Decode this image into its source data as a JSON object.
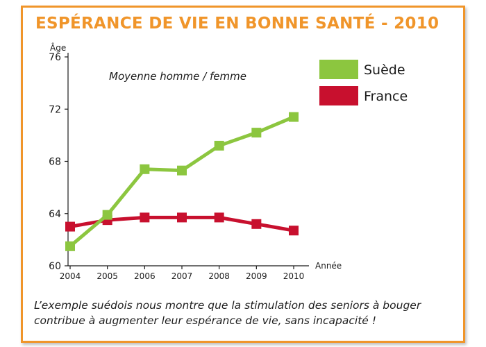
{
  "title": "ESPÉRANCE DE VIE EN BONNE SANTÉ - 2010",
  "caption": {
    "line1": "L’exemple suédois nous montre que la stimulation des seniors à bouger",
    "line2": "contribue à augmenter leur espérance de vie, sans incapacité !"
  },
  "chart_data": {
    "type": "line",
    "title": "ESPÉRANCE DE VIE EN BONNE SANTÉ - 2010",
    "subtitle": "Moyenne homme / femme",
    "xlabel": "Année",
    "ylabel": "Âge",
    "x": [
      "2004",
      "2005",
      "2006",
      "2007",
      "2008",
      "2009",
      "2010"
    ],
    "ylim": [
      60,
      76
    ],
    "yticks": [
      60,
      64,
      68,
      72,
      76
    ],
    "grid": false,
    "legend_position": "top-right",
    "series": [
      {
        "name": "Suède",
        "color": "#8cc63f",
        "values": [
          61.5,
          63.9,
          67.4,
          67.3,
          69.2,
          70.2,
          71.4
        ]
      },
      {
        "name": "France",
        "color": "#c8102e",
        "values": [
          63.0,
          63.5,
          63.7,
          63.7,
          63.7,
          63.2,
          62.7
        ]
      }
    ]
  }
}
